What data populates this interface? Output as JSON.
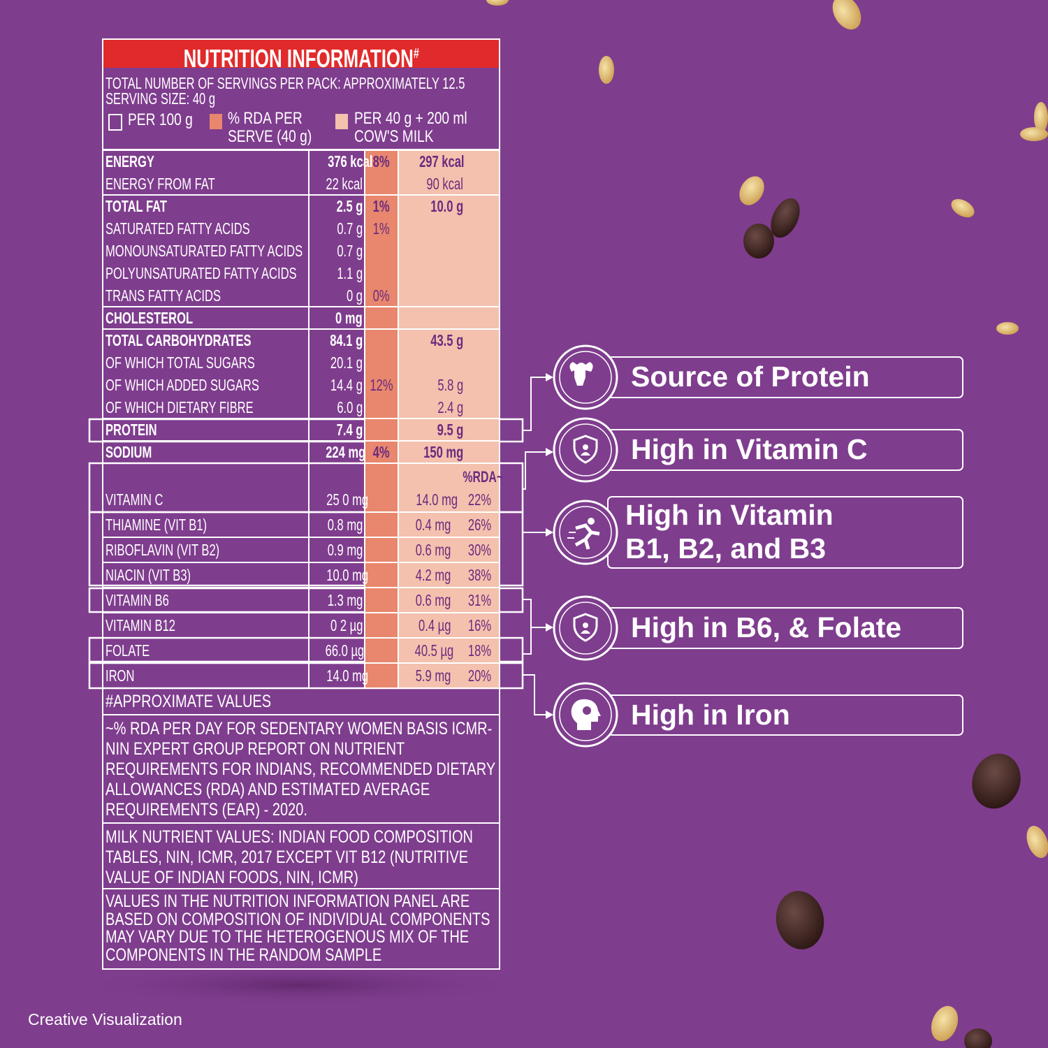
{
  "panel": {
    "title": "NUTRITION INFORMATION",
    "title_mark": "#",
    "servings": "TOTAL NUMBER OF SERVINGS PER PACK: APPROXIMATELY 12.5",
    "serving_size": "SERVING SIZE: 40 g",
    "legend": [
      "PER 100 g",
      "% RDA PER SERVE (40 g)",
      "PER 40 g + 200 ml COW'S MILK"
    ],
    "rda_header": "%RDA~",
    "rows": [
      {
        "name": "ENERGY",
        "per_100g": "376 kcal",
        "rda": "8%",
        "with_milk": "297 kcal",
        "bold": true
      },
      {
        "name": "ENERGY FROM FAT",
        "per_100g": "22 kcal",
        "with_milk": "90 kcal"
      },
      {
        "name": "TOTAL FAT",
        "per_100g": "2.5 g",
        "rda": "1%",
        "with_milk": "10.0 g",
        "bold": true
      },
      {
        "name": "SATURATED FATTY ACIDS",
        "per_100g": "0.7 g",
        "rda": "1%"
      },
      {
        "name": "MONOUNSATURATED FATTY ACIDS",
        "per_100g": "0.7 g"
      },
      {
        "name": "POLYUNSATURATED FATTY ACIDS",
        "per_100g": "1.1 g"
      },
      {
        "name": "TRANS FATTY ACIDS",
        "per_100g": "0 g",
        "rda": "0%"
      },
      {
        "name": "CHOLESTEROL",
        "per_100g": "0 mg",
        "bold": true
      },
      {
        "name": "TOTAL CARBOHYDRATES",
        "per_100g": "84.1 g",
        "with_milk": "43.5 g",
        "bold": true
      },
      {
        "name": "OF WHICH TOTAL SUGARS",
        "per_100g": "20.1 g"
      },
      {
        "name": "OF WHICH ADDED SUGARS",
        "per_100g": "14.4 g",
        "rda": "12%",
        "with_milk": "5.8 g"
      },
      {
        "name": "OF WHICH DIETARY FIBRE",
        "per_100g": "6.0 g",
        "with_milk": "2.4 g"
      },
      {
        "name": "PROTEIN",
        "per_100g": "7.4 g",
        "with_milk": "9.5 g",
        "bold": true
      },
      {
        "name": "SODIUM",
        "per_100g": "224 mg",
        "rda": "4%",
        "with_milk": "150 mg",
        "bold": true
      },
      {
        "name": "VITAMIN C",
        "per_100g": "25 0 mg",
        "with_milk": "14.0 mg",
        "milk_rda": "22%"
      },
      {
        "name": "THIAMINE (VIT B1)",
        "per_100g": "0.8 mg",
        "with_milk": "0.4 mg",
        "milk_rda": "26%"
      },
      {
        "name": "RIBOFLAVIN (VIT B2)",
        "per_100g": "0.9 mg",
        "with_milk": "0.6 mg",
        "milk_rda": "30%"
      },
      {
        "name": "NIACIN (VIT B3)",
        "per_100g": "10.0 mg",
        "with_milk": "4.2 mg",
        "milk_rda": "38%"
      },
      {
        "name": "VITAMIN B6",
        "per_100g": "1.3 mg",
        "with_milk": "0.6 mg",
        "milk_rda": "31%"
      },
      {
        "name": "VITAMIN B12",
        "per_100g": "0 2 µg",
        "with_milk": "0.4 µg",
        "milk_rda": "16%"
      },
      {
        "name": "FOLATE",
        "per_100g": "66.0 µg",
        "with_milk": "40.5 µg",
        "milk_rda": "18%"
      },
      {
        "name": "IRON",
        "per_100g": "14.0 mg",
        "with_milk": "5.9 mg",
        "milk_rda": "20%"
      }
    ],
    "notes": [
      "#APPROXIMATE VALUES",
      "~% RDA PER DAY FOR SEDENTARY WOMEN BASIS ICMR-NIN EXPERT GROUP REPORT ON NUTRIENT REQUIREMENTS FOR INDIANS, RECOMMENDED DIETARY ALLOWANCES (RDA) AND ESTIMATED AVERAGE REQUIREMENTS (EAR) - 2020.",
      "MILK NUTRIENT VALUES: INDIAN FOOD COMPOSITION TABLES, NIN, ICMR, 2017 EXCEPT VIT B12 (NUTRITIVE VALUE OF INDIAN FOODS, NIN, ICMR)",
      "VALUES IN THE NUTRITION INFORMATION PANEL ARE BASED ON COMPOSITION OF INDIVIDUAL COMPONENTS MAY VARY DUE TO THE HETEROGENOUS MIX OF THE COMPONENTS IN THE RANDOM SAMPLE"
    ]
  },
  "claims": [
    "Source of Protein",
    "High in Vitamin C",
    "High in Vitamin B1, B2, and B3",
    "High in B6, & Folate",
    "High in Iron"
  ],
  "footer": "Creative Visualization"
}
